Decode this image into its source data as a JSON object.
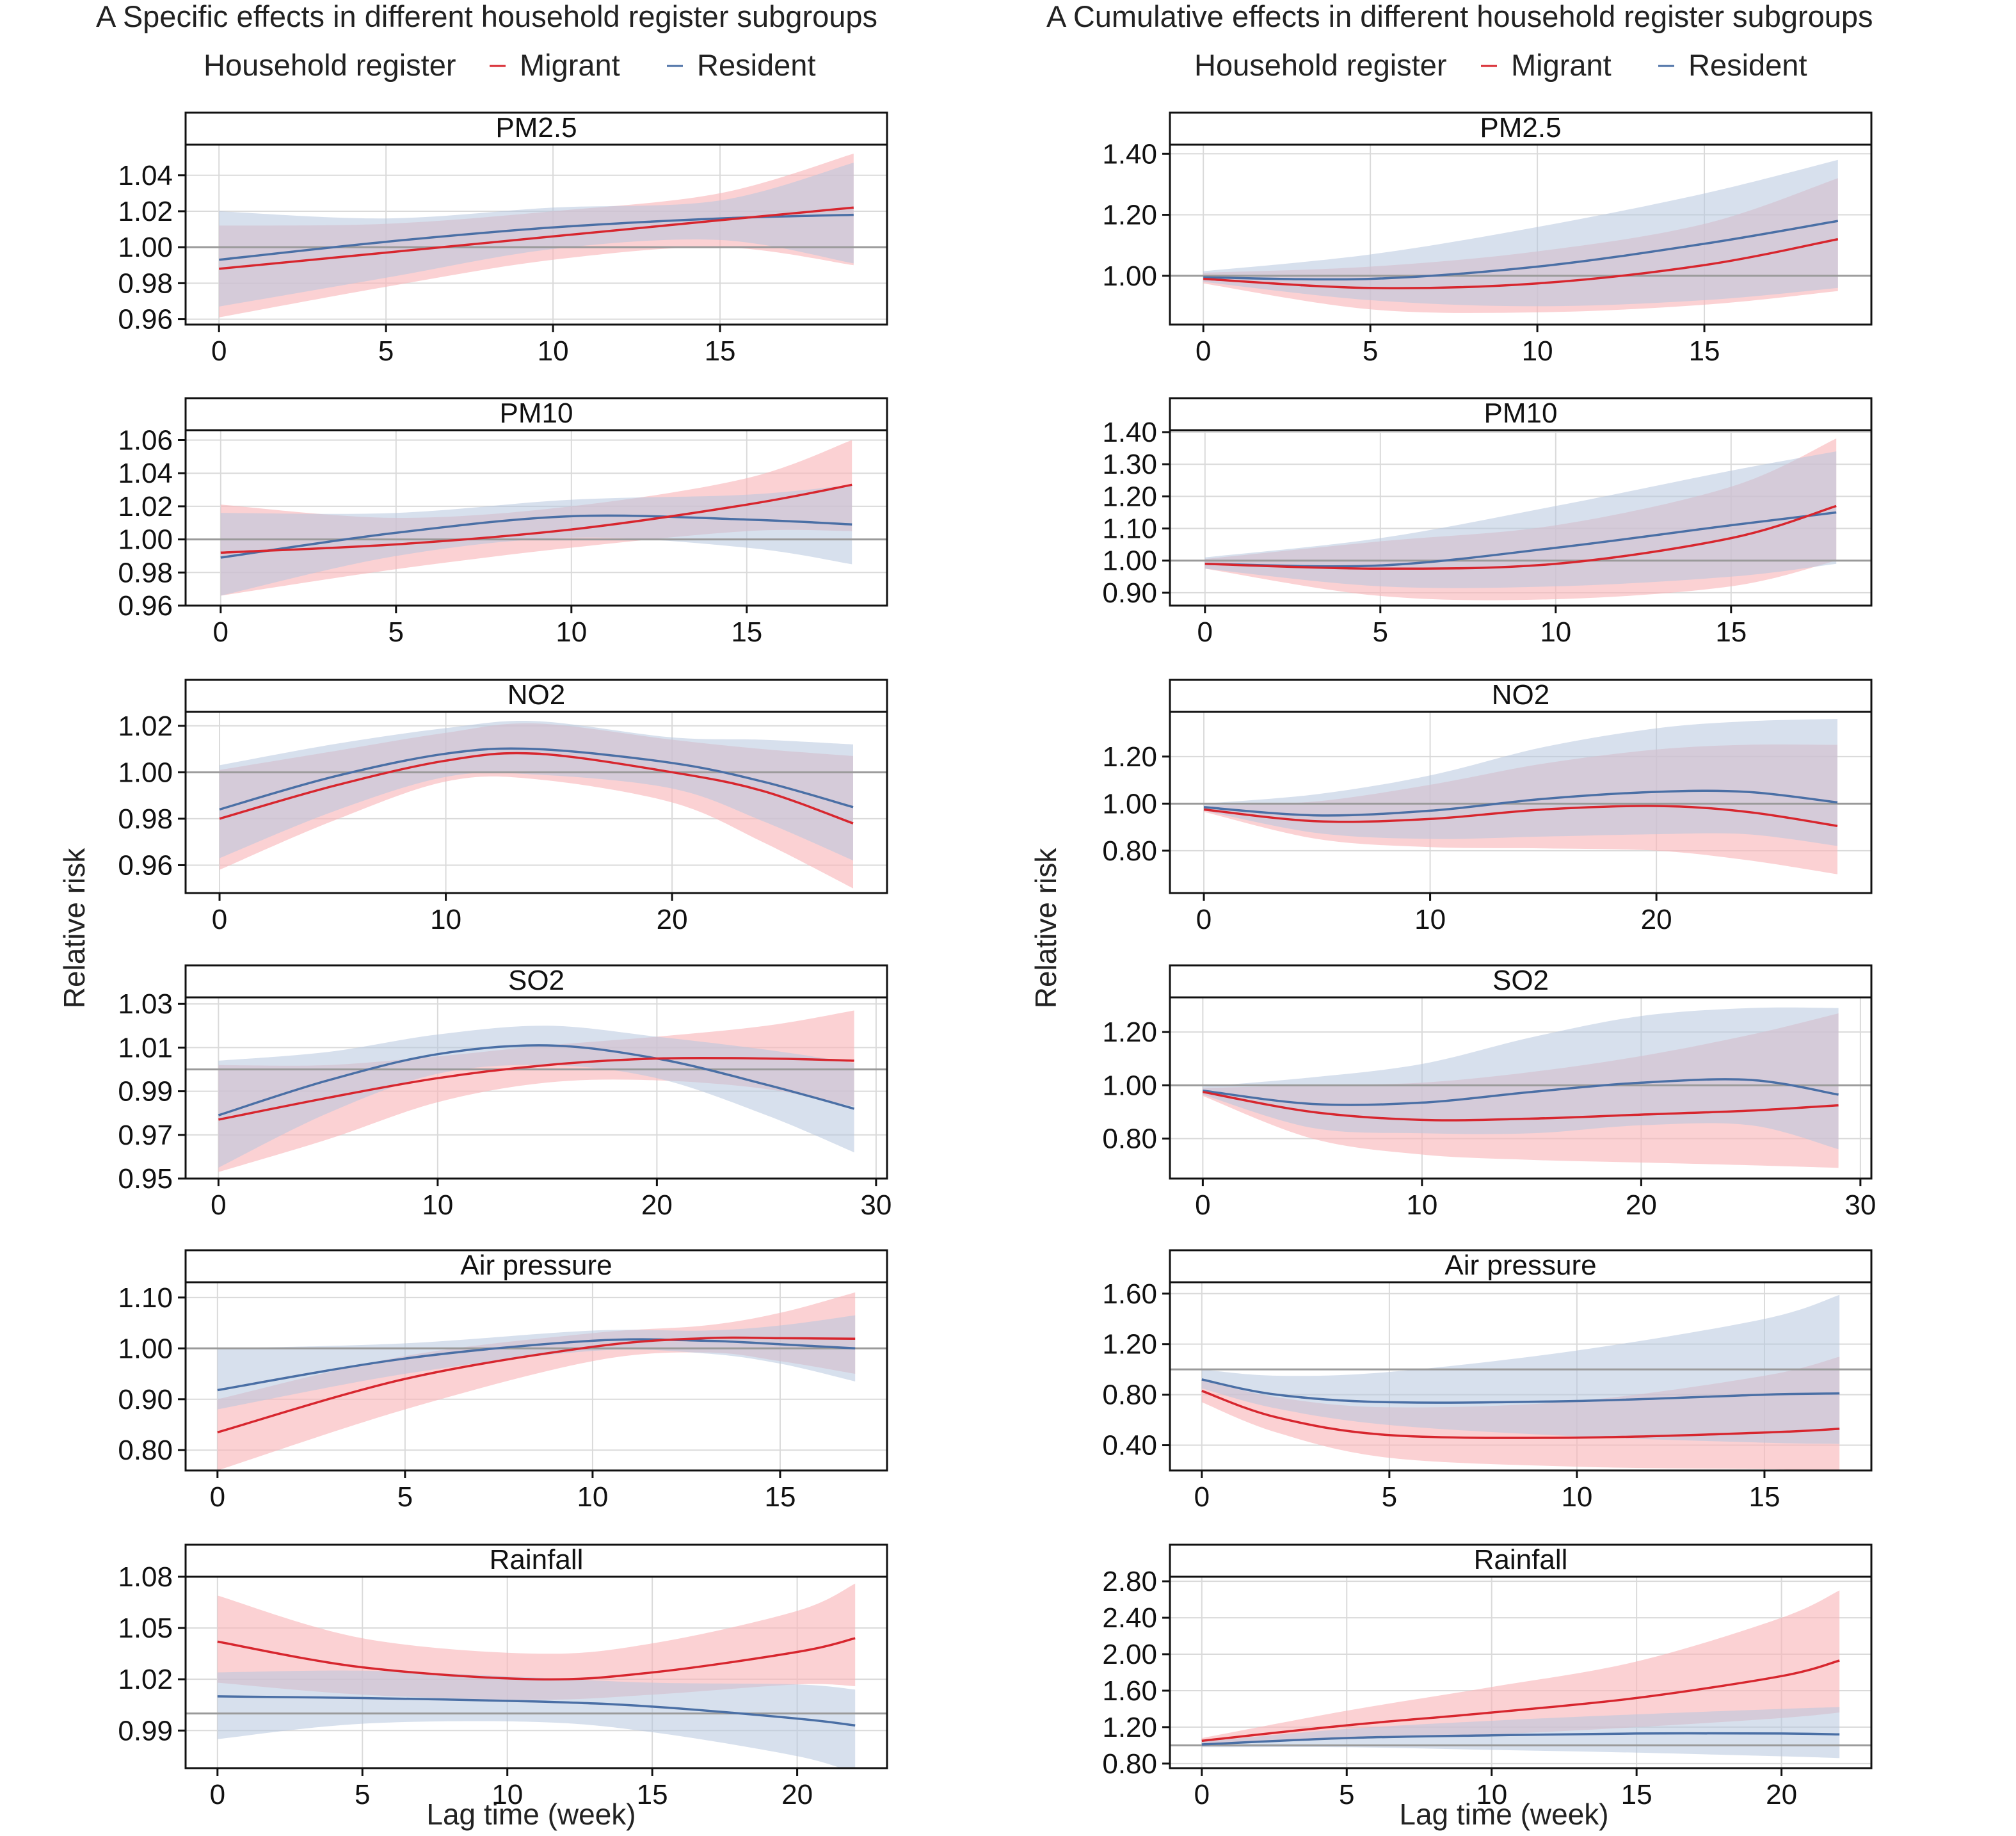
{
  "figure": {
    "left_title": "A  Specific effects in different household register subgroups",
    "right_title": "A  Cumulative effects in different household register subgroups",
    "legend": {
      "title": "Household register",
      "migrant": "Migrant",
      "resident": "Resident",
      "migrant_color": "#d7262e",
      "resident_color": "#4a6fa5",
      "migrant_band_color": "#f8b5b8",
      "resident_band_color": "#b7c6df"
    },
    "xlabel": "Lag time (week)",
    "ylabel": "Relative risk"
  },
  "chart_data": [
    {
      "type": "line",
      "column": "left",
      "row": 0,
      "title": "PM2.5",
      "xmax": 19,
      "xticks": [
        0,
        5,
        10,
        15
      ],
      "xlim": [
        -1,
        20
      ],
      "ylim": [
        0.957,
        1.057
      ],
      "yticks": [
        0.96,
        0.98,
        1.0,
        1.02,
        1.04
      ],
      "ydec": 2,
      "series": [
        {
          "name": "Migrant",
          "x": [
            0,
            5,
            10,
            15,
            19
          ],
          "y": [
            0.988,
            0.997,
            1.006,
            1.015,
            1.022
          ],
          "lower": [
            0.961,
            0.978,
            0.993,
            1.0,
            0.99
          ],
          "upper": [
            1.012,
            1.013,
            1.02,
            1.03,
            1.052
          ]
        },
        {
          "name": "Resident",
          "x": [
            0,
            5,
            10,
            15,
            19
          ],
          "y": [
            0.993,
            1.003,
            1.011,
            1.016,
            1.018
          ],
          "lower": [
            0.967,
            0.983,
            0.999,
            1.004,
            0.991
          ],
          "upper": [
            1.02,
            1.016,
            1.022,
            1.026,
            1.047
          ]
        }
      ]
    },
    {
      "type": "line",
      "column": "left",
      "row": 1,
      "title": "PM10",
      "xmax": 18,
      "xticks": [
        0,
        5,
        10,
        15
      ],
      "xlim": [
        -1,
        19
      ],
      "ylim": [
        0.96,
        1.066
      ],
      "yticks": [
        0.96,
        0.98,
        1.0,
        1.02,
        1.04,
        1.06
      ],
      "ydec": 2,
      "series": [
        {
          "name": "Migrant",
          "x": [
            0,
            5,
            10,
            15,
            18
          ],
          "y": [
            0.992,
            0.997,
            1.006,
            1.021,
            1.033
          ],
          "lower": [
            0.966,
            0.982,
            0.995,
            1.005,
            1.005
          ],
          "upper": [
            1.021,
            1.013,
            1.02,
            1.037,
            1.06
          ]
        },
        {
          "name": "Resident",
          "x": [
            0,
            5,
            10,
            15,
            18
          ],
          "y": [
            0.989,
            1.004,
            1.014,
            1.012,
            1.009
          ],
          "lower": [
            0.966,
            0.99,
            1.001,
            0.995,
            0.985
          ],
          "upper": [
            1.016,
            1.016,
            1.024,
            1.027,
            1.033
          ]
        }
      ]
    },
    {
      "type": "line",
      "column": "left",
      "row": 2,
      "title": "NO2",
      "xmax": 28,
      "xticks": [
        0,
        10,
        20
      ],
      "xlim": [
        -1.5,
        29.5
      ],
      "ylim": [
        0.948,
        1.026
      ],
      "yticks": [
        0.96,
        0.98,
        1.0,
        1.02
      ],
      "ydec": 2,
      "series": [
        {
          "name": "Migrant",
          "x": [
            0,
            5,
            10,
            14,
            20,
            24,
            28
          ],
          "y": [
            0.98,
            0.994,
            1.005,
            1.008,
            1.0,
            0.992,
            0.978
          ],
          "lower": [
            0.958,
            0.979,
            0.996,
            0.997,
            0.987,
            0.97,
            0.95
          ],
          "upper": [
            1.001,
            1.009,
            1.017,
            1.021,
            1.014,
            1.01,
            1.007
          ]
        },
        {
          "name": "Resident",
          "x": [
            0,
            5,
            10,
            14,
            20,
            24,
            28
          ],
          "y": [
            0.984,
            0.998,
            1.008,
            1.01,
            1.004,
            0.996,
            0.985
          ],
          "lower": [
            0.963,
            0.983,
            0.998,
            0.999,
            0.993,
            0.979,
            0.962
          ],
          "upper": [
            1.003,
            1.012,
            1.019,
            1.022,
            1.015,
            1.014,
            1.012
          ]
        }
      ]
    },
    {
      "type": "line",
      "column": "left",
      "row": 3,
      "title": "SO2",
      "xmax": 29,
      "xticks": [
        0,
        10,
        20,
        30
      ],
      "xlim": [
        -1.5,
        30.5
      ],
      "ylim": [
        0.95,
        1.033
      ],
      "yticks": [
        0.95,
        0.97,
        0.99,
        1.01,
        1.03
      ],
      "ydec": 2,
      "series": [
        {
          "name": "Migrant",
          "x": [
            0,
            5,
            10,
            15,
            20,
            25,
            29
          ],
          "y": [
            0.977,
            0.987,
            0.996,
            1.002,
            1.005,
            1.005,
            1.004
          ],
          "lower": [
            0.953,
            0.968,
            0.985,
            0.994,
            0.995,
            0.991,
            0.983
          ],
          "upper": [
            1.002,
            1.002,
            1.006,
            1.011,
            1.015,
            1.02,
            1.027
          ]
        },
        {
          "name": "Resident",
          "x": [
            0,
            5,
            10,
            15,
            20,
            25,
            29
          ],
          "y": [
            0.979,
            0.995,
            1.007,
            1.011,
            1.005,
            0.993,
            0.982
          ],
          "lower": [
            0.955,
            0.98,
            0.998,
            1.002,
            0.996,
            0.979,
            0.962
          ],
          "upper": [
            1.004,
            1.008,
            1.016,
            1.02,
            1.015,
            1.009,
            1.003
          ]
        }
      ]
    },
    {
      "type": "line",
      "column": "left",
      "row": 4,
      "title": "Air pressure",
      "xmax": 17,
      "xticks": [
        0,
        5,
        10,
        15
      ],
      "xlim": [
        -0.85,
        17.85
      ],
      "ylim": [
        0.76,
        1.13
      ],
      "yticks": [
        0.8,
        0.9,
        1.0,
        1.1
      ],
      "ydec": 2,
      "series": [
        {
          "name": "Migrant",
          "x": [
            0,
            5,
            10,
            13,
            15,
            17
          ],
          "y": [
            0.835,
            0.94,
            1.003,
            1.02,
            1.02,
            1.019
          ],
          "lower": [
            0.76,
            0.88,
            0.975,
            0.992,
            0.975,
            0.95
          ],
          "upper": [
            0.9,
            0.985,
            1.03,
            1.045,
            1.07,
            1.11
          ]
        },
        {
          "name": "Resident",
          "x": [
            0,
            5,
            10,
            13,
            15,
            17
          ],
          "y": [
            0.918,
            0.98,
            1.015,
            1.015,
            1.008,
            1.0
          ],
          "lower": [
            0.88,
            0.95,
            0.995,
            0.99,
            0.97,
            0.935
          ],
          "upper": [
            1.0,
            1.01,
            1.035,
            1.035,
            1.045,
            1.065
          ]
        }
      ]
    },
    {
      "type": "line",
      "column": "left",
      "row": 5,
      "title": "Rainfall",
      "xmax": 22,
      "xticks": [
        0,
        5,
        10,
        15,
        20
      ],
      "xlim": [
        -1.1,
        23.1
      ],
      "ylim": [
        0.968,
        1.08
      ],
      "yticks": [
        0.99,
        1.02,
        1.05,
        1.08
      ],
      "ydec": 2,
      "series": [
        {
          "name": "Migrant",
          "x": [
            0,
            5,
            11,
            15,
            20,
            22
          ],
          "y": [
            1.042,
            1.027,
            1.02,
            1.024,
            1.036,
            1.044
          ],
          "lower": [
            1.018,
            1.011,
            1.008,
            1.011,
            1.017,
            1.016
          ],
          "upper": [
            1.069,
            1.044,
            1.035,
            1.041,
            1.06,
            1.076
          ]
        },
        {
          "name": "Resident",
          "x": [
            0,
            5,
            11,
            15,
            20,
            22
          ],
          "y": [
            1.01,
            1.009,
            1.007,
            1.004,
            0.997,
            0.993
          ],
          "lower": [
            0.985,
            0.994,
            0.995,
            0.989,
            0.975,
            0.965
          ],
          "upper": [
            1.024,
            1.025,
            1.021,
            1.018,
            1.017,
            1.014
          ]
        }
      ]
    },
    {
      "type": "line",
      "column": "right",
      "row": 0,
      "title": "PM2.5",
      "xmax": 19,
      "xticks": [
        0,
        5,
        10,
        15
      ],
      "xlim": [
        -1,
        20
      ],
      "ylim": [
        0.84,
        1.43
      ],
      "yticks": [
        1.0,
        1.2,
        1.4
      ],
      "ydec": 2,
      "series": [
        {
          "name": "Migrant",
          "x": [
            0,
            5,
            10,
            15,
            19
          ],
          "y": [
            0.99,
            0.96,
            0.975,
            1.035,
            1.12
          ],
          "lower": [
            0.975,
            0.89,
            0.88,
            0.905,
            0.95
          ],
          "upper": [
            1.01,
            1.03,
            1.08,
            1.17,
            1.32
          ]
        },
        {
          "name": "Resident",
          "x": [
            0,
            5,
            10,
            15,
            19
          ],
          "y": [
            0.995,
            0.99,
            1.03,
            1.105,
            1.18
          ],
          "lower": [
            0.98,
            0.92,
            0.9,
            0.92,
            0.96
          ],
          "upper": [
            1.015,
            1.07,
            1.16,
            1.27,
            1.38
          ]
        }
      ]
    },
    {
      "type": "line",
      "column": "right",
      "row": 1,
      "title": "PM10",
      "xmax": 18,
      "xticks": [
        0,
        5,
        10,
        15
      ],
      "xlim": [
        -1,
        19
      ],
      "ylim": [
        0.86,
        1.406
      ],
      "yticks": [
        0.9,
        1.0,
        1.1,
        1.2,
        1.3,
        1.4
      ],
      "ydec": 2,
      "series": [
        {
          "name": "Migrant",
          "x": [
            0,
            5,
            10,
            15,
            18
          ],
          "y": [
            0.99,
            0.975,
            0.99,
            1.07,
            1.17
          ],
          "lower": [
            0.975,
            0.89,
            0.88,
            0.92,
            1.0
          ],
          "upper": [
            1.005,
            1.06,
            1.11,
            1.23,
            1.38
          ]
        },
        {
          "name": "Resident",
          "x": [
            0,
            5,
            10,
            15,
            18
          ],
          "y": [
            0.99,
            0.985,
            1.04,
            1.11,
            1.15
          ],
          "lower": [
            0.975,
            0.92,
            0.92,
            0.95,
            0.99
          ],
          "upper": [
            1.01,
            1.07,
            1.17,
            1.28,
            1.34
          ]
        }
      ]
    },
    {
      "type": "line",
      "column": "right",
      "row": 2,
      "title": "NO2",
      "xmax": 28,
      "xticks": [
        0,
        10,
        20
      ],
      "xlim": [
        -1.5,
        29.5
      ],
      "ylim": [
        0.62,
        1.39
      ],
      "yticks": [
        0.8,
        1.0,
        1.2
      ],
      "ydec": 2,
      "series": [
        {
          "name": "Migrant",
          "x": [
            0,
            5,
            10,
            15,
            20,
            24,
            28
          ],
          "y": [
            0.975,
            0.925,
            0.935,
            0.975,
            0.99,
            0.965,
            0.905
          ],
          "lower": [
            0.965,
            0.85,
            0.815,
            0.81,
            0.8,
            0.76,
            0.7
          ],
          "upper": [
            0.99,
            1.01,
            1.08,
            1.17,
            1.23,
            1.25,
            1.25
          ]
        },
        {
          "name": "Resident",
          "x": [
            0,
            5,
            10,
            15,
            20,
            24,
            28
          ],
          "y": [
            0.985,
            0.95,
            0.97,
            1.02,
            1.05,
            1.05,
            1.005
          ],
          "lower": [
            0.97,
            0.875,
            0.85,
            0.86,
            0.87,
            0.87,
            0.82
          ],
          "upper": [
            1.0,
            1.04,
            1.12,
            1.24,
            1.32,
            1.35,
            1.36
          ]
        }
      ]
    },
    {
      "type": "line",
      "column": "right",
      "row": 3,
      "title": "SO2",
      "xmax": 29,
      "xticks": [
        0,
        10,
        20,
        30
      ],
      "xlim": [
        -1.5,
        30.5
      ],
      "ylim": [
        0.65,
        1.33
      ],
      "yticks": [
        0.8,
        1.0,
        1.2
      ],
      "ydec": 2,
      "series": [
        {
          "name": "Migrant",
          "x": [
            0,
            5,
            10,
            15,
            20,
            25,
            29
          ],
          "y": [
            0.975,
            0.9,
            0.87,
            0.875,
            0.89,
            0.905,
            0.925
          ],
          "lower": [
            0.96,
            0.8,
            0.74,
            0.72,
            0.71,
            0.7,
            0.69
          ],
          "upper": [
            0.99,
            1.0,
            1.01,
            1.05,
            1.11,
            1.19,
            1.27
          ]
        },
        {
          "name": "Resident",
          "x": [
            0,
            5,
            10,
            15,
            20,
            25,
            29
          ],
          "y": [
            0.98,
            0.93,
            0.935,
            0.975,
            1.01,
            1.02,
            0.965
          ],
          "lower": [
            0.965,
            0.84,
            0.82,
            0.82,
            0.85,
            0.85,
            0.76
          ],
          "upper": [
            0.995,
            1.03,
            1.08,
            1.18,
            1.26,
            1.29,
            1.29
          ]
        }
      ]
    },
    {
      "type": "line",
      "column": "right",
      "row": 4,
      "title": "Air pressure",
      "xmax": 17,
      "xticks": [
        0,
        5,
        10,
        15
      ],
      "xlim": [
        -0.85,
        17.85
      ],
      "ylim": [
        0.2,
        1.69
      ],
      "yticks": [
        0.4,
        0.8,
        1.2,
        1.6
      ],
      "ydec": 2,
      "series": [
        {
          "name": "Migrant",
          "x": [
            0,
            2,
            5,
            10,
            15,
            17
          ],
          "y": [
            0.83,
            0.62,
            0.48,
            0.46,
            0.5,
            0.53
          ],
          "lower": [
            0.74,
            0.5,
            0.3,
            0.23,
            0.21,
            0.2
          ],
          "upper": [
            0.92,
            0.78,
            0.7,
            0.75,
            0.95,
            1.1
          ]
        },
        {
          "name": "Resident",
          "x": [
            0,
            2,
            5,
            10,
            15,
            17
          ],
          "y": [
            0.92,
            0.8,
            0.74,
            0.75,
            0.8,
            0.81
          ],
          "lower": [
            0.85,
            0.69,
            0.56,
            0.47,
            0.42,
            0.41
          ],
          "upper": [
            1.0,
            0.95,
            0.98,
            1.15,
            1.4,
            1.59
          ]
        }
      ]
    },
    {
      "type": "line",
      "column": "right",
      "row": 5,
      "title": "Rainfall",
      "xmax": 22,
      "xticks": [
        0,
        5,
        10,
        15,
        20
      ],
      "xlim": [
        -1.1,
        23.1
      ],
      "ylim": [
        0.75,
        2.85
      ],
      "yticks": [
        0.8,
        1.2,
        1.6,
        2.0,
        2.4,
        2.8
      ],
      "ydec": 2,
      "series": [
        {
          "name": "Migrant",
          "x": [
            0,
            5,
            10,
            15,
            20,
            22
          ],
          "y": [
            1.05,
            1.22,
            1.36,
            1.52,
            1.76,
            1.93
          ],
          "lower": [
            1.02,
            1.07,
            1.12,
            1.2,
            1.3,
            1.36
          ],
          "upper": [
            1.08,
            1.38,
            1.64,
            1.92,
            2.4,
            2.7
          ]
        },
        {
          "name": "Resident",
          "x": [
            0,
            5,
            10,
            15,
            20,
            22
          ],
          "y": [
            1.01,
            1.08,
            1.11,
            1.13,
            1.13,
            1.12
          ],
          "lower": [
            0.98,
            0.98,
            0.95,
            0.92,
            0.88,
            0.86
          ],
          "upper": [
            1.04,
            1.18,
            1.27,
            1.34,
            1.4,
            1.42
          ]
        }
      ]
    }
  ]
}
